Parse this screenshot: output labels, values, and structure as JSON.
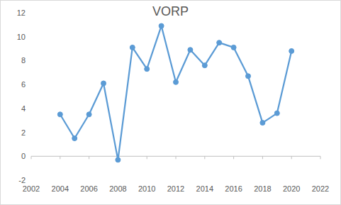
{
  "chart_data": {
    "type": "line",
    "title": "VORP",
    "x": [
      2004,
      2005,
      2006,
      2007,
      2008,
      2009,
      2010,
      2011,
      2012,
      2013,
      2014,
      2015,
      2016,
      2017,
      2018,
      2019,
      2020
    ],
    "values": [
      3.5,
      1.5,
      3.5,
      6.1,
      -0.3,
      9.1,
      7.3,
      10.9,
      6.2,
      8.9,
      7.6,
      9.5,
      9.1,
      6.7,
      2.8,
      3.6,
      8.8
    ],
    "color": "#5b9bd5",
    "marker": "circle",
    "line_style": "solid",
    "xlim": [
      2002,
      2022
    ],
    "xticks": [
      2002,
      2004,
      2006,
      2008,
      2010,
      2012,
      2014,
      2016,
      2018,
      2020,
      2022
    ],
    "ylim": [
      -2,
      12
    ],
    "yticks": [
      -2,
      0,
      2,
      4,
      6,
      8,
      10,
      12
    ],
    "grid": false
  }
}
